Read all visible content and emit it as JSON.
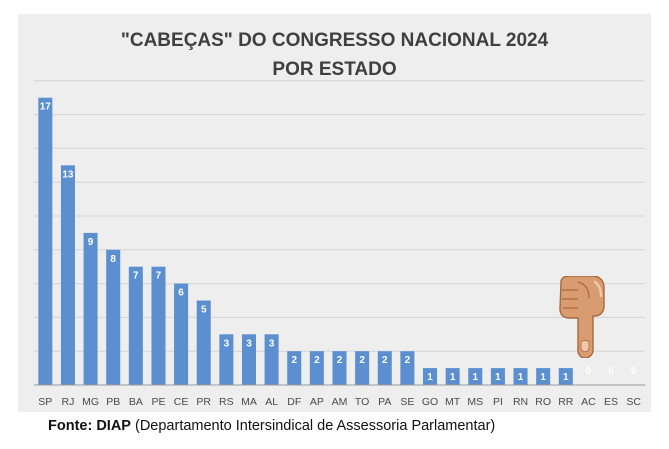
{
  "chart_data": {
    "type": "bar",
    "title": "\"CABEÇAS\" DO CONGRESSO NACIONAL 2024",
    "subtitle": "POR ESTADO",
    "xlabel": "",
    "ylabel": "",
    "categories": [
      "SP",
      "RJ",
      "MG",
      "PB",
      "BA",
      "PE",
      "CE",
      "PR",
      "RS",
      "MA",
      "AL",
      "DF",
      "AP",
      "AM",
      "TO",
      "PA",
      "SE",
      "GO",
      "MT",
      "MS",
      "PI",
      "RN",
      "RO",
      "RR",
      "AC",
      "ES",
      "SC"
    ],
    "values": [
      17,
      13,
      9,
      8,
      7,
      7,
      6,
      5,
      3,
      3,
      3,
      2,
      2,
      2,
      2,
      2,
      2,
      1,
      1,
      1,
      1,
      1,
      1,
      1,
      0,
      0,
      0
    ],
    "ylim": [
      0,
      18
    ],
    "grid": true,
    "legend": "none",
    "bar_color": "#5b8fcf",
    "label_color": "#ffffff"
  },
  "source": {
    "label": "Fonte: DIAP",
    "text": "(Departamento Intersindical de Assessoria Parlamentar)"
  },
  "annotation": {
    "icon": "pointing-down-hand-icon"
  }
}
